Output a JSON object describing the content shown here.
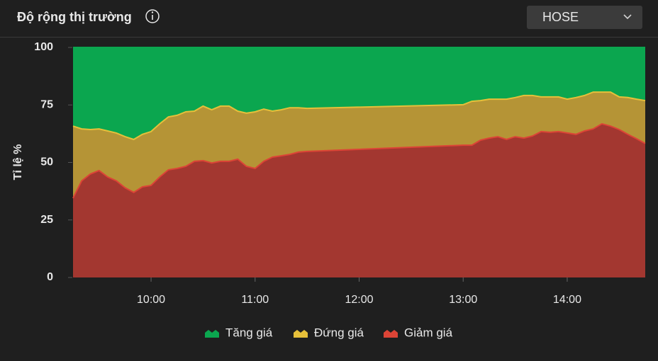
{
  "header": {
    "title": "Độ rộng thị trường",
    "dropdown": "HOSE"
  },
  "chart_data": {
    "type": "stacked-area",
    "y_label": "Tỉ lệ %",
    "x": [
      "09:15",
      "09:20",
      "09:25",
      "09:30",
      "09:35",
      "09:40",
      "09:45",
      "09:50",
      "09:55",
      "10:00",
      "10:05",
      "10:10",
      "10:15",
      "10:20",
      "10:25",
      "10:30",
      "10:35",
      "10:40",
      "10:45",
      "10:50",
      "10:55",
      "11:00",
      "11:05",
      "11:10",
      "11:15",
      "11:20",
      "11:25",
      "11:30",
      "13:00",
      "13:05",
      "13:10",
      "13:15",
      "13:20",
      "13:25",
      "13:30",
      "13:35",
      "13:40",
      "13:45",
      "13:50",
      "13:55",
      "14:00",
      "14:05",
      "14:10",
      "14:15",
      "14:20",
      "14:25",
      "14:30",
      "14:35",
      "14:40",
      "14:45"
    ],
    "xlim": [
      "09:15",
      "14:45"
    ],
    "xticks": [
      "10:00",
      "11:00",
      "12:00",
      "13:00",
      "14:00"
    ],
    "ylim": [
      0,
      100
    ],
    "yticks": [
      0,
      25,
      50,
      75,
      100
    ],
    "grid": false,
    "legend": "bottom",
    "series": [
      {
        "name": "Tăng giá",
        "color": "#0ba64f",
        "line_color": "#0ba64f",
        "values": [
          34.2,
          35.4,
          35.7,
          35.4,
          36.3,
          37.2,
          38.8,
          40,
          37.8,
          36.6,
          33.2,
          30.2,
          29.5,
          28,
          27.7,
          25.5,
          27.1,
          25.5,
          25.5,
          27.7,
          28.6,
          28,
          26.8,
          27.7,
          27.1,
          26.2,
          26.2,
          26.5,
          24.9,
          23.4,
          23.1,
          22.5,
          22.5,
          22.5,
          21.8,
          20.9,
          20.9,
          21.5,
          21.5,
          21.5,
          22.5,
          21.8,
          20.9,
          19.4,
          19.4,
          19.4,
          21.5,
          21.8,
          22.5,
          23.1
        ]
      },
      {
        "name": "Đứng giá",
        "color": "#b59436",
        "line_color": "#e6c03a",
        "values": [
          31.3,
          22.6,
          19.3,
          18.1,
          20,
          20.8,
          22.2,
          23,
          22.8,
          23.4,
          23.1,
          23,
          23.1,
          23.7,
          21.8,
          23.7,
          23.1,
          24,
          24,
          20.9,
          23.1,
          24.6,
          22.7,
          20,
          20,
          20.3,
          19.3,
          18.7,
          17.6,
          19.1,
          17.2,
          16.9,
          16.3,
          17.5,
          17,
          18.5,
          17.6,
          15.1,
          15.4,
          15.1,
          14.7,
          16,
          15.4,
          16,
          13.8,
          14.8,
          14.2,
          16,
          17.2,
          18.7
        ]
      },
      {
        "name": "Giảm giá",
        "color": "#a33730",
        "line_color": "#dc4436",
        "values": [
          34.5,
          42,
          45,
          46.5,
          43.7,
          42,
          39,
          37,
          39.4,
          40,
          43.7,
          46.8,
          47.4,
          48.3,
          50.5,
          50.8,
          49.8,
          50.5,
          50.5,
          51.4,
          48.3,
          47.4,
          50.5,
          52.3,
          52.9,
          53.5,
          54.5,
          54.8,
          57.5,
          57.5,
          59.7,
          60.6,
          61.2,
          60,
          61.2,
          60.6,
          61.5,
          63.4,
          63.1,
          63.4,
          62.8,
          62.2,
          63.7,
          64.6,
          66.8,
          65.8,
          64.3,
          62.2,
          60.3,
          58.2
        ]
      }
    ]
  }
}
